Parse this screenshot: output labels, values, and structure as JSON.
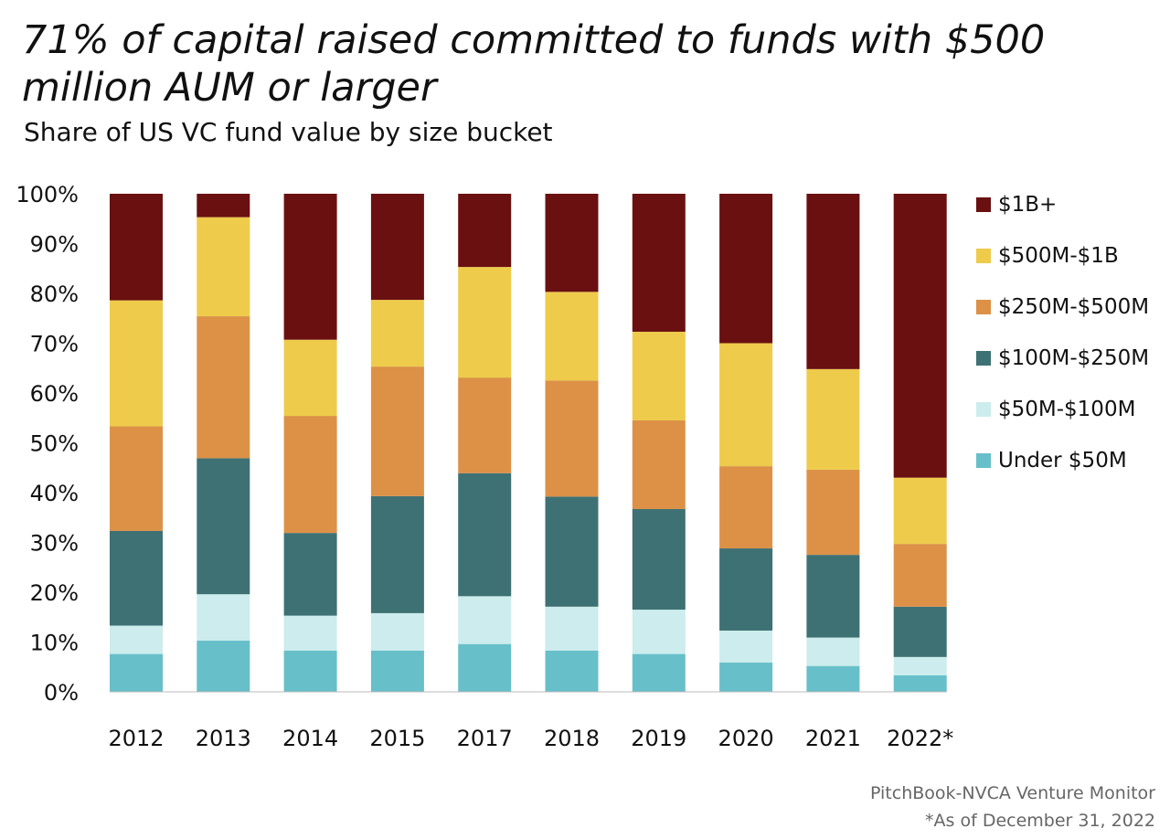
{
  "chart_data": {
    "type": "bar",
    "stacked": true,
    "title": "71% of capital raised committed to funds with $500 million AUM or larger",
    "subtitle": "Share of US VC fund value by size bucket",
    "categories": [
      "2012",
      "2013",
      "2014",
      "2015",
      "2017",
      "2018",
      "2019",
      "2020",
      "2021",
      "2022*"
    ],
    "ylim": [
      0,
      100
    ],
    "yticks": [
      "0%",
      "10%",
      "20%",
      "30%",
      "40%",
      "50%",
      "60%",
      "70%",
      "80%",
      "90%",
      "100%"
    ],
    "legend_position": "right",
    "series": [
      {
        "name": "Under $50M",
        "color": "#67bfc9",
        "values": [
          7.6,
          10.3,
          8.3,
          8.3,
          9.6,
          8.3,
          7.6,
          5.9,
          5.2,
          3.3
        ]
      },
      {
        "name": "$50M-$100M",
        "color": "#cceced",
        "values": [
          5.7,
          9.3,
          7.0,
          7.5,
          9.6,
          8.8,
          8.9,
          6.4,
          5.7,
          3.7
        ]
      },
      {
        "name": "$100M-$250M",
        "color": "#3e7174",
        "values": [
          19.0,
          27.3,
          16.6,
          23.5,
          24.7,
          22.1,
          20.2,
          16.5,
          16.6,
          10.1
        ]
      },
      {
        "name": "$250M-$500M",
        "color": "#dc9147",
        "values": [
          21.0,
          28.5,
          23.5,
          26.0,
          19.2,
          23.3,
          17.8,
          16.5,
          17.1,
          12.6
        ]
      },
      {
        "name": "$500M-$1B",
        "color": "#eecb4b",
        "values": [
          25.3,
          19.9,
          15.3,
          13.4,
          22.2,
          17.8,
          17.8,
          24.7,
          20.2,
          13.3
        ]
      },
      {
        "name": "$1B+",
        "color": "#6a1011",
        "values": [
          21.4,
          4.7,
          29.3,
          21.3,
          14.7,
          19.7,
          27.7,
          30.0,
          35.2,
          57.0
        ]
      }
    ]
  },
  "legend": [
    {
      "label": "$1B+",
      "color": "#6a1011"
    },
    {
      "label": "$500M-$1B",
      "color": "#eecb4b"
    },
    {
      "label": "$250M-$500M",
      "color": "#dc9147"
    },
    {
      "label": "$100M-$250M",
      "color": "#3e7174"
    },
    {
      "label": "$50M-$100M",
      "color": "#cceced"
    },
    {
      "label": "Under $50M",
      "color": "#67bfc9"
    }
  ],
  "source": {
    "line1": "PitchBook-NVCA Venture Monitor",
    "line2": "*As of December 31, 2022"
  }
}
